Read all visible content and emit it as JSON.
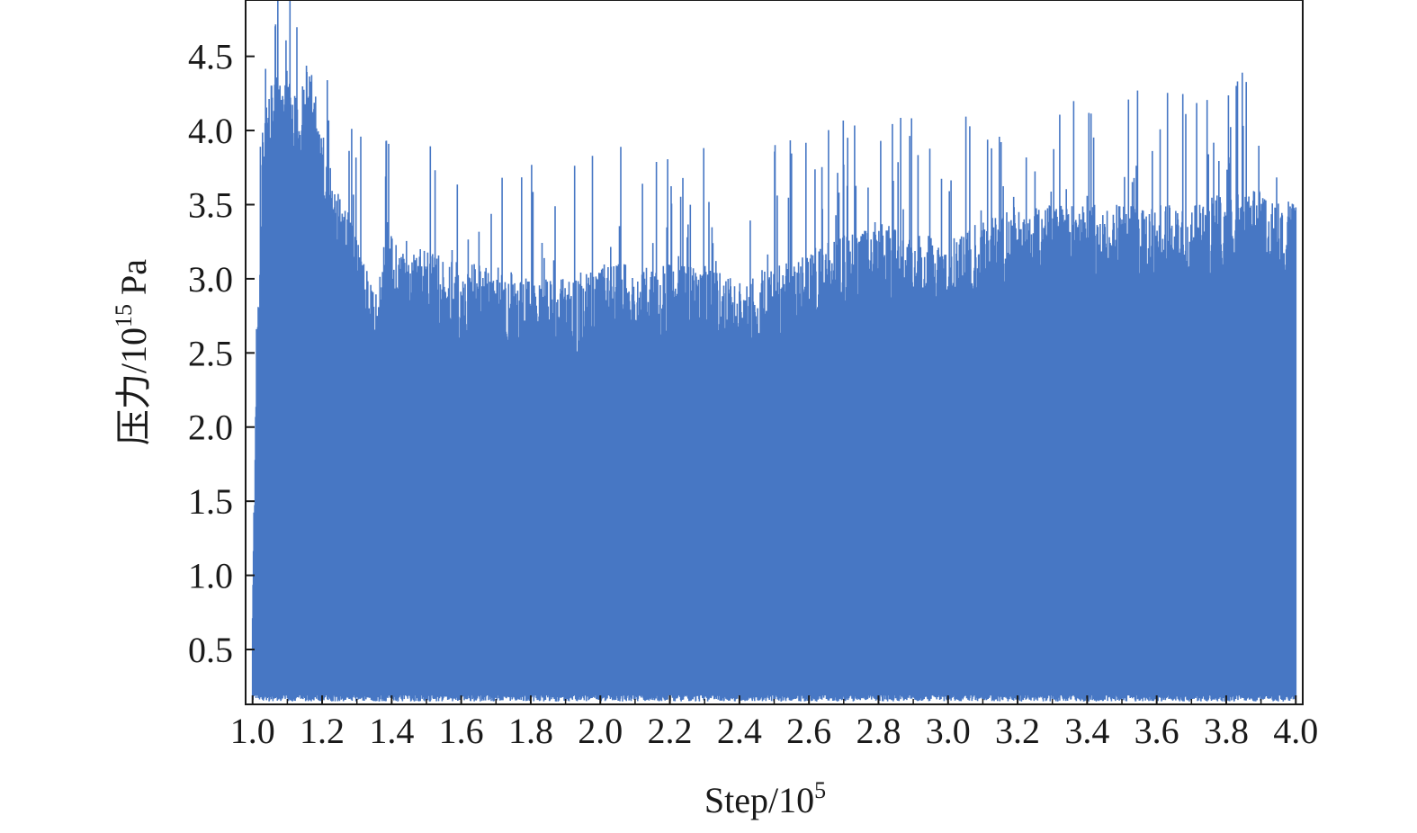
{
  "chart_data": {
    "type": "line",
    "title": "",
    "xlabel": {
      "base": "Step/10",
      "sup": "5"
    },
    "ylabel": {
      "base": "压力/10",
      "sup": "15",
      "suffix": " Pa"
    },
    "xlim": [
      0.98,
      4.02
    ],
    "ylim": [
      0.13,
      4.88
    ],
    "xticks": [
      "1.0",
      "1.2",
      "1.4",
      "1.6",
      "1.8",
      "2.0",
      "2.2",
      "2.4",
      "2.6",
      "2.8",
      "3.0",
      "3.2",
      "3.4",
      "3.6",
      "3.8",
      "4.0"
    ],
    "yticks": [
      "0.5",
      "1.0",
      "1.5",
      "2.0",
      "2.5",
      "3.0",
      "3.5",
      "4.0",
      "4.5"
    ],
    "grid": false,
    "legend": "none",
    "series_color": "#4777c4",
    "series": [
      {
        "name": "",
        "note": "dense noisy signal between ~0.15 and the envelope",
        "envelope_x": [
          1.0,
          1.01,
          1.02,
          1.03,
          1.05,
          1.08,
          1.1,
          1.13,
          1.16,
          1.2,
          1.25,
          1.3,
          1.35,
          1.4,
          1.5,
          1.6,
          1.7,
          1.8,
          1.9,
          2.0,
          2.1,
          2.2,
          2.3,
          2.4,
          2.5,
          2.6,
          2.7,
          2.8,
          2.9,
          3.0,
          3.1,
          3.2,
          3.3,
          3.4,
          3.5,
          3.6,
          3.7,
          3.8,
          3.9,
          4.0
        ],
        "envelope_mean_top": [
          0.7,
          2.4,
          3.0,
          3.9,
          4.1,
          4.2,
          4.3,
          4.0,
          4.3,
          3.8,
          3.4,
          3.1,
          2.7,
          3.1,
          3.0,
          2.9,
          2.9,
          2.8,
          2.8,
          2.9,
          2.9,
          2.9,
          2.9,
          2.8,
          2.9,
          3.0,
          3.1,
          3.2,
          3.1,
          3.1,
          3.2,
          3.3,
          3.3,
          3.3,
          3.3,
          3.3,
          3.3,
          3.4,
          3.4,
          3.3
        ],
        "peak_max": 4.88,
        "floor": 0.15
      }
    ]
  }
}
